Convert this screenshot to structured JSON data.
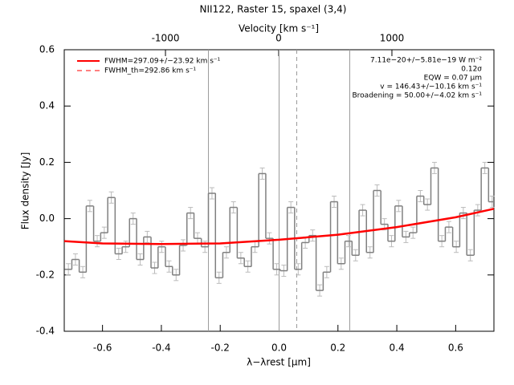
{
  "chart_data": {
    "type": "step",
    "title": "NII122, Raster 15, spaxel (3,4)",
    "xlabel": "λ−λrest [μm]",
    "ylabel": "Flux density [Jy]",
    "x2label": "Velocity [km s⁻¹]",
    "xlim": [
      -0.73,
      0.73
    ],
    "ylim": [
      -0.4,
      0.6
    ],
    "x2lim": [
      -1894,
      1901
    ],
    "xticks": [
      -0.6,
      -0.4,
      -0.2,
      {
        "value": 0,
        "label": "0.0"
      },
      0.2,
      0.4,
      0.6
    ],
    "yticks": [
      -0.4,
      -0.2,
      {
        "value": 0,
        "label": "0.0"
      },
      0.2,
      0.4,
      0.6
    ],
    "x2ticks": [
      -1000,
      0,
      1000
    ],
    "bin_width": 0.0244,
    "x": [
      -0.716,
      -0.692,
      -0.667,
      -0.643,
      -0.618,
      -0.594,
      -0.57,
      -0.545,
      -0.521,
      -0.496,
      -0.472,
      -0.448,
      -0.423,
      -0.399,
      -0.374,
      -0.35,
      -0.326,
      -0.301,
      -0.277,
      -0.252,
      -0.228,
      -0.204,
      -0.179,
      -0.155,
      -0.13,
      -0.106,
      -0.082,
      -0.057,
      -0.033,
      -0.008,
      0.016,
      0.04,
      0.065,
      0.089,
      0.114,
      0.138,
      0.162,
      0.187,
      0.211,
      0.236,
      0.26,
      0.284,
      0.309,
      0.333,
      0.358,
      0.382,
      0.406,
      0.431,
      0.455,
      0.48,
      0.504,
      0.528,
      0.553,
      0.577,
      0.602,
      0.626,
      0.65,
      0.675,
      0.699,
      0.724
    ],
    "values": [
      -0.18,
      -0.145,
      -0.19,
      0.045,
      -0.08,
      -0.05,
      0.075,
      -0.125,
      -0.1,
      0.0,
      -0.145,
      -0.065,
      -0.175,
      -0.1,
      -0.17,
      -0.2,
      -0.095,
      0.02,
      -0.07,
      -0.1,
      0.09,
      -0.21,
      -0.12,
      0.04,
      -0.14,
      -0.17,
      -0.1,
      0.16,
      -0.07,
      -0.18,
      -0.185,
      0.04,
      -0.18,
      -0.085,
      -0.06,
      -0.255,
      -0.19,
      0.06,
      -0.16,
      -0.08,
      -0.13,
      0.03,
      -0.12,
      0.1,
      -0.02,
      -0.08,
      0.045,
      -0.065,
      -0.05,
      0.08,
      0.05,
      0.18,
      -0.08,
      -0.03,
      -0.1,
      0.02,
      -0.13,
      0.03,
      0.18,
      0.06
    ],
    "error": 0.02,
    "step_color": "#808080",
    "fit": {
      "name": "FWHM=297.09+/−23.92 km s⁻¹",
      "color": "#ff0000",
      "x": [
        -0.73,
        -0.6,
        -0.4,
        -0.2,
        0,
        0.2,
        0.4,
        0.6,
        0.73
      ],
      "values": [
        -0.08,
        -0.088,
        -0.09,
        -0.088,
        -0.075,
        -0.057,
        -0.03,
        0.005,
        0.035
      ]
    },
    "fit_th": {
      "name": "FWHM_th=292.86 km s⁻¹",
      "color": "#ff0000"
    },
    "vlines": [
      {
        "x": -0.24,
        "style": "solid"
      },
      {
        "x": 0,
        "style": "solid"
      },
      {
        "x": 0.24,
        "style": "solid"
      },
      {
        "x": 0.06,
        "style": "dashed"
      }
    ],
    "annotations": [
      "7.11e−20+/−5.81e−19 W m⁻²",
      "0.12σ",
      "EQW = 0.07 μm",
      "v = 146.43+/−10.16 km s⁻¹",
      "Broadening = 50.00+/−4.02 km s⁻¹"
    ]
  }
}
